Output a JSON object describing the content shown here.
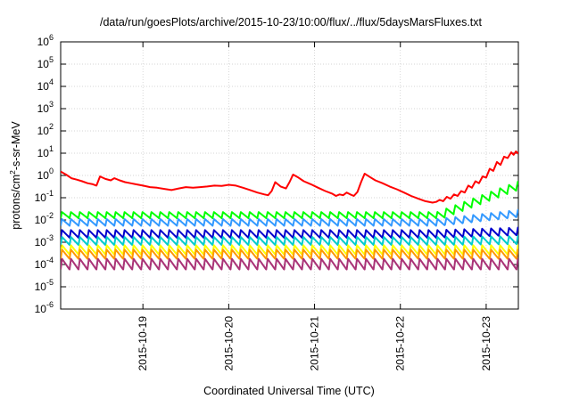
{
  "chart_data": {
    "type": "line",
    "title": "/data/run/goesPlots/archive/2015-10-23/10:00/flux/../flux/5daysMarsFluxes.txt",
    "xlabel": "Coordinated Universal Time (UTC)",
    "ylabel": "protons/cm2-s-sr-MeV",
    "ylabel_parts": {
      "base": "protons/cm",
      "sup": "2",
      "rest": "-s-sr-MeV"
    },
    "yscale": "log",
    "ylim": [
      1e-06,
      1000000.0
    ],
    "xlim": [
      "2015-10-18T01:00",
      "2015-10-23T09:00"
    ],
    "y_ticks": [
      {
        "value": 1e-06,
        "base": "10",
        "exp": "-6"
      },
      {
        "value": 1e-05,
        "base": "10",
        "exp": "-5"
      },
      {
        "value": 0.0001,
        "base": "10",
        "exp": "-4"
      },
      {
        "value": 0.001,
        "base": "10",
        "exp": "-3"
      },
      {
        "value": 0.01,
        "base": "10",
        "exp": "-2"
      },
      {
        "value": 0.1,
        "base": "10",
        "exp": "-1"
      },
      {
        "value": 1,
        "base": "10",
        "exp": "0"
      },
      {
        "value": 10,
        "base": "10",
        "exp": "1"
      },
      {
        "value": 100,
        "base": "10",
        "exp": "2"
      },
      {
        "value": 1000,
        "base": "10",
        "exp": "3"
      },
      {
        "value": 10000,
        "base": "10",
        "exp": "4"
      },
      {
        "value": 100000,
        "base": "10",
        "exp": "5"
      },
      {
        "value": 1000000,
        "base": "10",
        "exp": "6"
      }
    ],
    "x_ticks": [
      {
        "value": "2015-10-19T00:00",
        "label": "2015-10-19"
      },
      {
        "value": "2015-10-20T00:00",
        "label": "2015-10-20"
      },
      {
        "value": "2015-10-21T00:00",
        "label": "2015-10-21"
      },
      {
        "value": "2015-10-22T00:00",
        "label": "2015-10-22"
      },
      {
        "value": "2015-10-23T00:00",
        "label": "2015-10-23"
      }
    ],
    "grid": true,
    "series": [
      {
        "color": "#ff0000",
        "points": [
          [
            "2015-10-18T01:00",
            1.5
          ],
          [
            "2015-10-18T02:30",
            1.1
          ],
          [
            "2015-10-18T04:00",
            0.75
          ],
          [
            "2015-10-18T05:30",
            0.65
          ],
          [
            "2015-10-18T07:00",
            0.55
          ],
          [
            "2015-10-18T08:30",
            0.45
          ],
          [
            "2015-10-18T10:00",
            0.4
          ],
          [
            "2015-10-18T11:00",
            0.35
          ],
          [
            "2015-10-18T12:00",
            0.9
          ],
          [
            "2015-10-18T13:30",
            0.7
          ],
          [
            "2015-10-18T15:00",
            0.6
          ],
          [
            "2015-10-18T16:00",
            0.75
          ],
          [
            "2015-10-18T17:30",
            0.6
          ],
          [
            "2015-10-18T19:00",
            0.5
          ],
          [
            "2015-10-18T20:30",
            0.45
          ],
          [
            "2015-10-18T22:00",
            0.4
          ],
          [
            "2015-10-19T00:00",
            0.35
          ],
          [
            "2015-10-19T02:00",
            0.3
          ],
          [
            "2015-10-19T04:00",
            0.28
          ],
          [
            "2015-10-19T06:00",
            0.25
          ],
          [
            "2015-10-19T08:00",
            0.22
          ],
          [
            "2015-10-19T10:00",
            0.26
          ],
          [
            "2015-10-19T12:00",
            0.3
          ],
          [
            "2015-10-19T14:00",
            0.28
          ],
          [
            "2015-10-19T16:00",
            0.3
          ],
          [
            "2015-10-19T18:00",
            0.32
          ],
          [
            "2015-10-19T20:00",
            0.35
          ],
          [
            "2015-10-19T22:00",
            0.34
          ],
          [
            "2015-10-20T00:00",
            0.38
          ],
          [
            "2015-10-20T02:00",
            0.35
          ],
          [
            "2015-10-20T04:00",
            0.28
          ],
          [
            "2015-10-20T06:00",
            0.22
          ],
          [
            "2015-10-20T08:00",
            0.17
          ],
          [
            "2015-10-20T10:00",
            0.14
          ],
          [
            "2015-10-20T11:00",
            0.13
          ],
          [
            "2015-10-20T12:00",
            0.2
          ],
          [
            "2015-10-20T13:00",
            0.5
          ],
          [
            "2015-10-20T14:30",
            0.32
          ],
          [
            "2015-10-20T16:00",
            0.26
          ],
          [
            "2015-10-20T17:00",
            0.5
          ],
          [
            "2015-10-20T18:00",
            1.1
          ],
          [
            "2015-10-20T19:30",
            0.8
          ],
          [
            "2015-10-20T21:00",
            0.55
          ],
          [
            "2015-10-20T23:00",
            0.4
          ],
          [
            "2015-10-21T01:00",
            0.28
          ],
          [
            "2015-10-21T03:00",
            0.2
          ],
          [
            "2015-10-21T05:00",
            0.15
          ],
          [
            "2015-10-21T06:00",
            0.12
          ],
          [
            "2015-10-21T07:00",
            0.14
          ],
          [
            "2015-10-21T08:00",
            0.13
          ],
          [
            "2015-10-21T09:00",
            0.17
          ],
          [
            "2015-10-21T10:00",
            0.14
          ],
          [
            "2015-10-21T11:00",
            0.12
          ],
          [
            "2015-10-21T12:00",
            0.18
          ],
          [
            "2015-10-21T13:00",
            0.5
          ],
          [
            "2015-10-21T14:00",
            1.2
          ],
          [
            "2015-10-21T15:30",
            0.85
          ],
          [
            "2015-10-21T17:00",
            0.6
          ],
          [
            "2015-10-21T19:00",
            0.45
          ],
          [
            "2015-10-21T21:00",
            0.32
          ],
          [
            "2015-10-21T23:00",
            0.24
          ],
          [
            "2015-10-22T01:00",
            0.17
          ],
          [
            "2015-10-22T03:00",
            0.12
          ],
          [
            "2015-10-22T05:00",
            0.09
          ],
          [
            "2015-10-22T07:00",
            0.07
          ],
          [
            "2015-10-22T09:00",
            0.06
          ],
          [
            "2015-10-22T10:00",
            0.065
          ],
          [
            "2015-10-22T11:00",
            0.08
          ],
          [
            "2015-10-22T12:00",
            0.07
          ],
          [
            "2015-10-22T13:00",
            0.11
          ],
          [
            "2015-10-22T14:00",
            0.09
          ],
          [
            "2015-10-22T15:00",
            0.14
          ],
          [
            "2015-10-22T16:00",
            0.12
          ],
          [
            "2015-10-22T17:00",
            0.2
          ],
          [
            "2015-10-22T18:00",
            0.17
          ],
          [
            "2015-10-22T19:00",
            0.35
          ],
          [
            "2015-10-22T20:00",
            0.28
          ],
          [
            "2015-10-22T21:00",
            0.55
          ],
          [
            "2015-10-22T22:00",
            0.45
          ],
          [
            "2015-10-22T23:00",
            0.9
          ],
          [
            "2015-10-23T00:00",
            0.8
          ],
          [
            "2015-10-23T01:00",
            2.0
          ],
          [
            "2015-10-23T02:00",
            1.6
          ],
          [
            "2015-10-23T03:00",
            4.0
          ],
          [
            "2015-10-23T04:00",
            3.0
          ],
          [
            "2015-10-23T05:00",
            7.0
          ],
          [
            "2015-10-23T06:00",
            6.0
          ],
          [
            "2015-10-23T07:00",
            11.0
          ],
          [
            "2015-10-23T07:40",
            8.5
          ],
          [
            "2015-10-23T08:20",
            12.0
          ],
          [
            "2015-10-23T09:00",
            9.5
          ]
        ]
      },
      {
        "color": "#00ff00",
        "base": 0.012,
        "amp": 1.9,
        "end_rise": 25
      },
      {
        "color": "#3399ff",
        "base": 0.0055,
        "amp": 2.0,
        "end_rise": 2.6
      },
      {
        "color": "#0000cc",
        "base": 0.0016,
        "amp": 2.2,
        "end_rise": 1.3
      },
      {
        "color": "#00cccc",
        "base": 0.00075,
        "amp": 2.3,
        "end_rise": 1.1
      },
      {
        "color": "#ffff00",
        "base": 0.00028,
        "amp": 2.6,
        "end_rise": 1.0
      },
      {
        "color": "#ff9900",
        "base": 0.00018,
        "amp": 2.6,
        "end_rise": 1.0
      },
      {
        "color": "#aa3377",
        "base": 6e-05,
        "amp": 3.0,
        "end_rise": 1.0
      }
    ]
  }
}
